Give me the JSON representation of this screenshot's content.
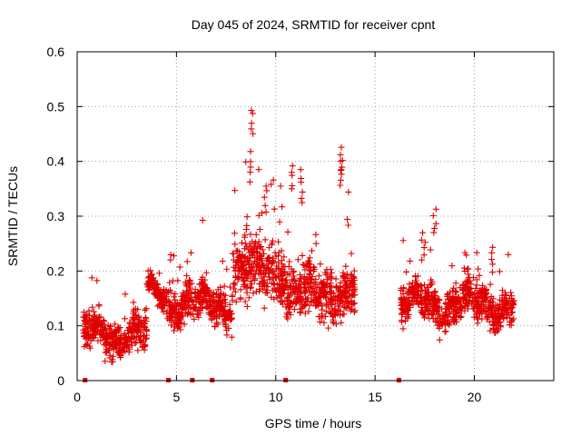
{
  "chart_data": {
    "type": "scatter",
    "title": "Day 045 of 2024, SRMTID for receiver cpnt",
    "xlabel": "GPS time / hours",
    "ylabel": "SRMTID / TECUs",
    "xlim": [
      0,
      24
    ],
    "ylim": [
      0,
      0.6
    ],
    "x_ticks": [
      0,
      5,
      10,
      15,
      20
    ],
    "x_tick_labels": [
      "0",
      "5",
      "10",
      "15",
      "20"
    ],
    "y_ticks": [
      0,
      0.1,
      0.2,
      0.3,
      0.4,
      0.5,
      0.6
    ],
    "y_tick_labels": [
      "0",
      "0.1",
      "0.2",
      "0.3",
      "0.4",
      "0.5",
      "0.6"
    ],
    "grid": true,
    "marker": "+",
    "color": "#e00000",
    "series": [
      {
        "name": "SRMTID",
        "segments": [
          {
            "x_start": 0.3,
            "x_end": 3.5,
            "base": 0.085,
            "spread": 0.06
          },
          {
            "x_start": 3.5,
            "x_end": 4.5,
            "base": 0.16,
            "spread": 0.04
          },
          {
            "x_start": 4.5,
            "x_end": 7.8,
            "base": 0.14,
            "spread": 0.06
          },
          {
            "x_start": 7.8,
            "x_end": 10.5,
            "base": 0.2,
            "spread": 0.1
          },
          {
            "x_start": 10.5,
            "x_end": 14.0,
            "base": 0.16,
            "spread": 0.09
          },
          {
            "x_start": 16.3,
            "x_end": 22.0,
            "base": 0.14,
            "spread": 0.06
          }
        ],
        "peaks": [
          {
            "x": 8.5,
            "y": 0.3
          },
          {
            "x": 8.7,
            "y": 0.42
          },
          {
            "x": 8.8,
            "y": 0.5
          },
          {
            "x": 9.5,
            "y": 0.36
          },
          {
            "x": 10.8,
            "y": 0.4
          },
          {
            "x": 11.3,
            "y": 0.39
          },
          {
            "x": 13.3,
            "y": 0.41
          },
          {
            "x": 13.3,
            "y": 0.43
          },
          {
            "x": 18.0,
            "y": 0.32
          },
          {
            "x": 17.4,
            "y": 0.27
          },
          {
            "x": 20.9,
            "y": 0.25
          }
        ]
      },
      {
        "name": "zero-markers",
        "points": [
          {
            "x": 0.4,
            "y": 0
          },
          {
            "x": 4.6,
            "y": 0
          },
          {
            "x": 5.8,
            "y": 0
          },
          {
            "x": 6.8,
            "y": 0
          },
          {
            "x": 10.5,
            "y": 0
          },
          {
            "x": 16.2,
            "y": 0
          }
        ]
      }
    ]
  }
}
